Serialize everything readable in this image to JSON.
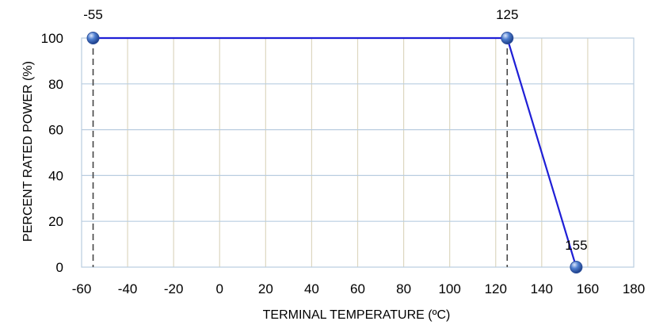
{
  "chart_data": {
    "type": "line",
    "title": "",
    "xlabel": "TERMINAL TEMPERATURE (ºC)",
    "ylabel": "PERCENT RATED POWER (%)",
    "xlim": [
      -60,
      180
    ],
    "ylim": [
      0,
      100
    ],
    "x_ticks": [
      -60,
      -40,
      -20,
      0,
      20,
      40,
      60,
      80,
      100,
      120,
      140,
      160,
      180
    ],
    "y_ticks": [
      0,
      20,
      40,
      60,
      80,
      100
    ],
    "grid": true,
    "legend": "none",
    "series": [
      {
        "x": [
          -55,
          125,
          155
        ],
        "y": [
          100,
          100,
          0
        ],
        "color": "#1f1fd6",
        "marker_color": "#4f7fd0"
      }
    ],
    "data_labels": [
      "-55",
      "125",
      "155"
    ],
    "reference_lines": {
      "x": [
        -55,
        125
      ],
      "style": "dashed",
      "color": "#444444"
    },
    "colors": {
      "vertical_grid": "#ddd7c0",
      "horizontal_grid": "#b9cde0",
      "plot_border": "#b9cde0"
    }
  }
}
